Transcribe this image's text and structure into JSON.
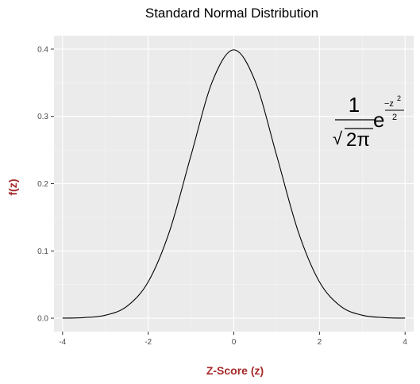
{
  "colors": {
    "panel_bg": "#ebebeb",
    "grid_major": "#ffffff",
    "grid_minor": "#f5f5f5",
    "line": "#000000",
    "axis_title": "#a52a2a",
    "tick_label": "#4d4d4d"
  },
  "formula": {
    "numerator": "1",
    "radical": "√",
    "denominator_body": "2π",
    "base": "e",
    "exponent_numerator": "−z",
    "exponent_power": "2",
    "exponent_denominator": "2"
  },
  "chart_data": {
    "type": "line",
    "title": "Standard Normal Distribution",
    "xlabel": "Z-Score (z)",
    "ylabel": "f(z)",
    "xlim": [
      -4.2,
      4.2
    ],
    "ylim": [
      -0.02,
      0.42
    ],
    "grid": true,
    "x_ticks": [
      -4,
      -2,
      0,
      2,
      4
    ],
    "x_tick_labels": [
      "-4",
      "-2",
      "0",
      "2",
      "4"
    ],
    "y_ticks": [
      0.0,
      0.1,
      0.2,
      0.3,
      0.4
    ],
    "y_tick_labels": [
      "0.0",
      "0.1",
      "0.2",
      "0.3",
      "0.4"
    ],
    "series": [
      {
        "x": [
          -4.0,
          -3.5,
          -3.0,
          -2.5,
          -2.0,
          -1.5,
          -1.0,
          -0.5,
          0.0,
          0.5,
          1.0,
          1.5,
          2.0,
          2.5,
          3.0,
          3.5,
          4.0
        ],
        "values": [
          0.0001,
          0.0009,
          0.0044,
          0.0175,
          0.054,
          0.1295,
          0.242,
          0.3521,
          0.3989,
          0.3521,
          0.242,
          0.1295,
          0.054,
          0.0175,
          0.0044,
          0.0009,
          0.0001
        ]
      }
    ]
  }
}
